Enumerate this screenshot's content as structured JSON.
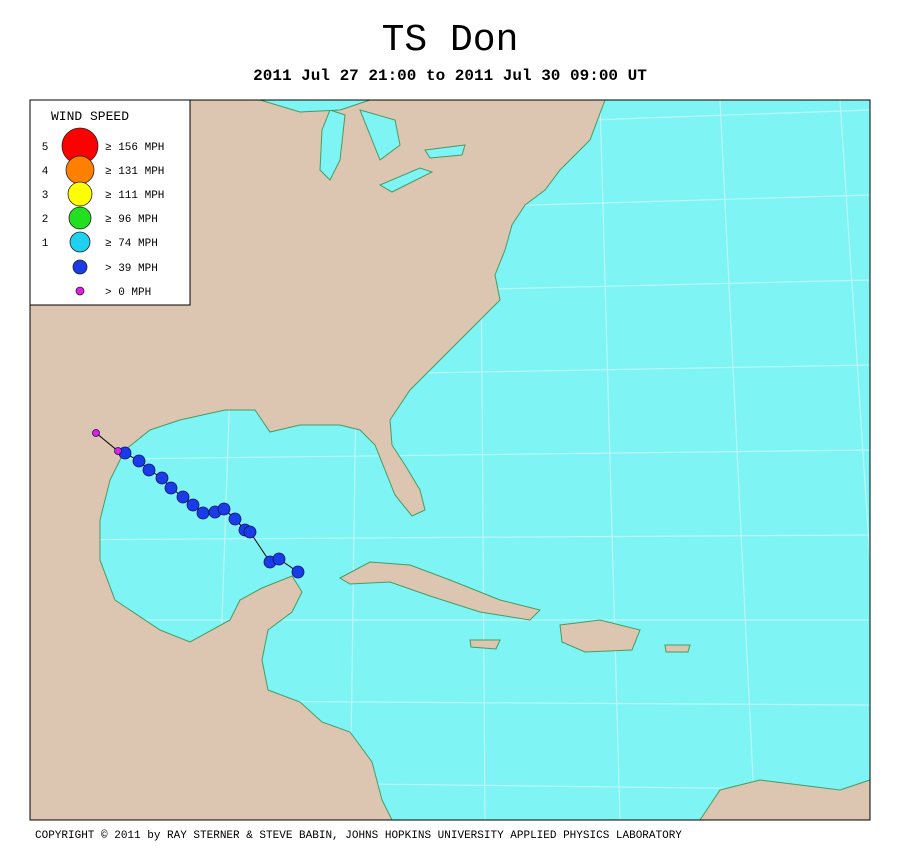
{
  "header": {
    "title": "TS Don",
    "subtitle": "2011 Jul 27 21:00 to 2011 Jul 30 09:00 UT"
  },
  "legend": {
    "title": "WIND SPEED",
    "items": [
      {
        "category": "5",
        "label": "≥ 156 MPH",
        "color": "#ff0000"
      },
      {
        "category": "4",
        "label": "≥ 131 MPH",
        "color": "#ff8000"
      },
      {
        "category": "3",
        "label": "≥ 111 MPH",
        "color": "#ffff00"
      },
      {
        "category": "2",
        "label": "≥ 96 MPH",
        "color": "#20e020"
      },
      {
        "category": "1",
        "label": "≥ 74 MPH",
        "color": "#20d0f0"
      },
      {
        "label": "> 39 MPH",
        "color": "#1a3ce8"
      },
      {
        "label": "> 0 MPH",
        "color": "#e020e0"
      }
    ]
  },
  "footer": {
    "copyright": "COPYRIGHT © 2011 by RAY STERNER & STEVE BABIN, JOHNS HOPKINS UNIVERSITY APPLIED PHYSICS LABORATORY"
  }
}
